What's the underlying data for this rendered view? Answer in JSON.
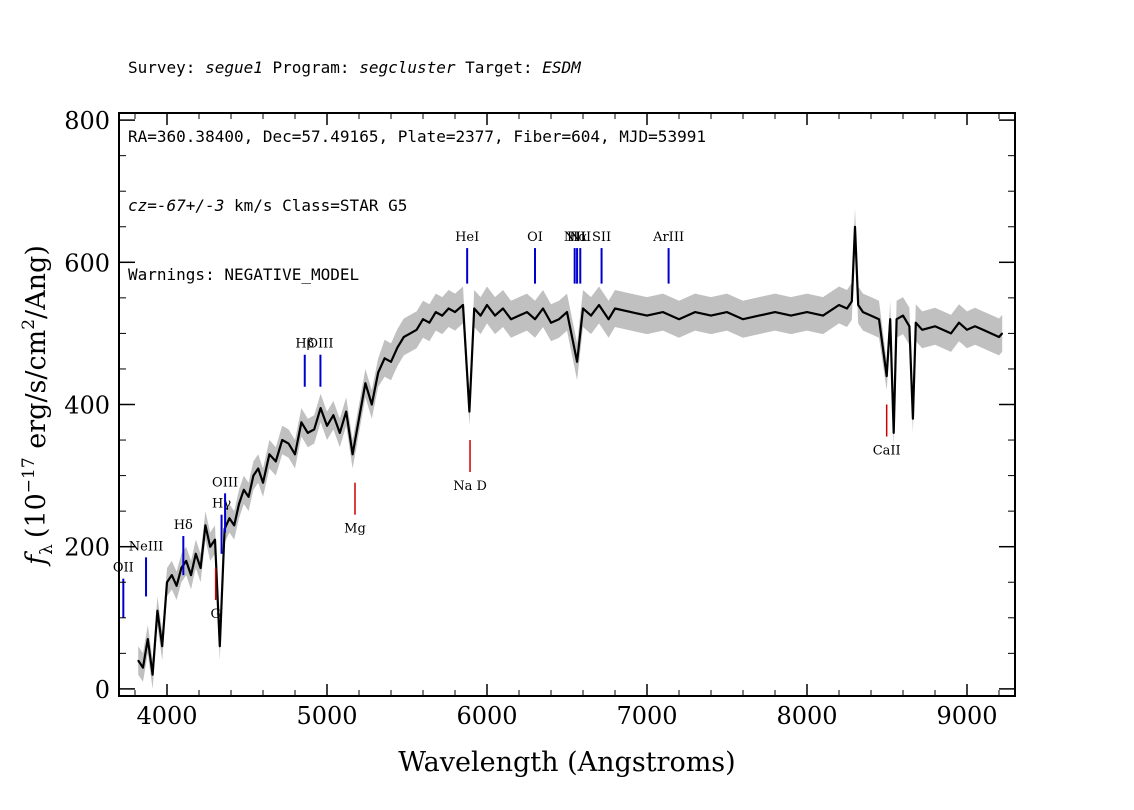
{
  "header": {
    "survey_label": "Survey: ",
    "survey": "segue1",
    "program_label": " Program: ",
    "program": "segcluster",
    "target_label": " Target: ",
    "target": "ESDM",
    "line2": "RA=360.38400, Dec=57.49165, Plate=2377, Fiber=604, MJD=53991",
    "cz": "cz=-67+/-3",
    "cz_rest": " km/s Class=STAR G5",
    "warnings": "Warnings: NEGATIVE_MODEL"
  },
  "chart_data": {
    "type": "line",
    "title": "",
    "xlabel": "Wavelength (Angstroms)",
    "ylabel": "f_λ (10^-17 erg/s/cm^2/Ang)",
    "ylabel_parts": {
      "f": "f",
      "sub": "λ",
      "open": "(10",
      "exp": "−17",
      "mid": " erg/s/cm",
      "exp2": "2",
      "close": "/Ang)"
    },
    "xlim": [
      3700,
      9300
    ],
    "ylim": [
      -10,
      810
    ],
    "x_ticks": [
      4000,
      5000,
      6000,
      7000,
      8000,
      9000
    ],
    "x_tick_labels": [
      "4000",
      "5000",
      "6000",
      "7000",
      "8000",
      "9000"
    ],
    "y_ticks": [
      0,
      200,
      400,
      600,
      800
    ],
    "y_tick_labels": [
      "0",
      "200",
      "400",
      "600",
      "800"
    ],
    "series": [
      {
        "name": "flux",
        "color": "#000000",
        "x": [
          3820,
          3850,
          3880,
          3910,
          3940,
          3970,
          4000,
          4030,
          4060,
          4090,
          4120,
          4150,
          4180,
          4210,
          4240,
          4270,
          4300,
          4330,
          4360,
          4390,
          4420,
          4450,
          4480,
          4510,
          4540,
          4570,
          4600,
          4640,
          4680,
          4720,
          4760,
          4800,
          4840,
          4880,
          4920,
          4960,
          5000,
          5040,
          5080,
          5120,
          5160,
          5200,
          5240,
          5280,
          5320,
          5360,
          5400,
          5440,
          5480,
          5520,
          5560,
          5600,
          5640,
          5680,
          5720,
          5760,
          5800,
          5850,
          5890,
          5920,
          5960,
          6000,
          6050,
          6100,
          6150,
          6200,
          6250,
          6300,
          6350,
          6400,
          6450,
          6500,
          6563,
          6600,
          6650,
          6700,
          6760,
          6800,
          6900,
          7000,
          7100,
          7200,
          7300,
          7400,
          7500,
          7600,
          7700,
          7800,
          7900,
          8000,
          8100,
          8200,
          8250,
          8280,
          8300,
          8320,
          8350,
          8400,
          8450,
          8498,
          8520,
          8542,
          8560,
          8600,
          8640,
          8662,
          8680,
          8720,
          8800,
          8900,
          8950,
          9000,
          9050,
          9100,
          9150,
          9200,
          9220
        ],
        "y": [
          40,
          30,
          70,
          20,
          110,
          60,
          150,
          160,
          145,
          170,
          180,
          160,
          190,
          170,
          230,
          200,
          210,
          60,
          225,
          240,
          230,
          260,
          280,
          270,
          300,
          310,
          290,
          330,
          320,
          350,
          345,
          330,
          375,
          360,
          365,
          395,
          370,
          385,
          360,
          390,
          330,
          380,
          430,
          400,
          445,
          465,
          460,
          480,
          495,
          500,
          505,
          520,
          515,
          530,
          525,
          535,
          530,
          540,
          390,
          535,
          525,
          540,
          525,
          535,
          520,
          525,
          530,
          520,
          535,
          515,
          520,
          530,
          460,
          535,
          525,
          540,
          520,
          535,
          530,
          525,
          530,
          520,
          530,
          525,
          530,
          520,
          525,
          530,
          525,
          530,
          525,
          540,
          535,
          545,
          650,
          540,
          530,
          525,
          520,
          440,
          520,
          360,
          520,
          525,
          510,
          380,
          515,
          505,
          510,
          500,
          515,
          505,
          510,
          505,
          500,
          495,
          500
        ],
        "label": "flux",
        "error_band_color": "#c0c0c0"
      }
    ],
    "emission_lines": [
      {
        "label": "OII",
        "x": 3727
      },
      {
        "label": "NeIII",
        "x": 3869
      },
      {
        "label": "Hδ",
        "x": 4102
      },
      {
        "label": "Hγ",
        "x": 4341
      },
      {
        "label": "OIII",
        "x": 4363
      },
      {
        "label": "Hβ",
        "x": 4861
      },
      {
        "label": "OIII",
        "x": 4959
      },
      {
        "label": "HeI",
        "x": 5876
      },
      {
        "label": "OI",
        "x": 6300
      },
      {
        "label": "NII",
        "x": 6548
      },
      {
        "label": "Hα",
        "x": 6563
      },
      {
        "label": "NII",
        "x": 6583
      },
      {
        "label": "SII",
        "x": 6716
      },
      {
        "label": "ArIII",
        "x": 7135
      }
    ],
    "absorption_lines": [
      {
        "label": "G",
        "x": 4304
      },
      {
        "label": "Mg",
        "x": 5175
      },
      {
        "label": "Na D",
        "x": 5894
      },
      {
        "label": "CaII",
        "x": 8498
      }
    ],
    "emission_color": "#0000cc",
    "absorption_color": "#cc0000"
  }
}
